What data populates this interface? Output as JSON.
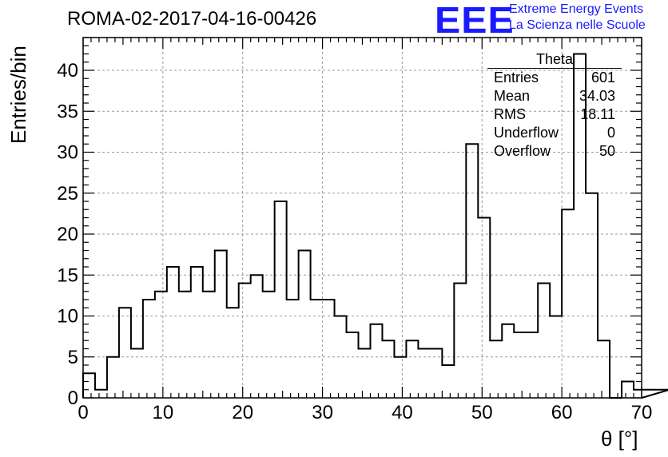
{
  "header": {
    "run_title": "ROMA-02-2017-04-16-00426",
    "logo_text": "EEE",
    "logo_line1": "Extreme Energy Events",
    "logo_line2": "La Scienza nelle Scuole",
    "brand_color": "#1a1aff"
  },
  "stats_box": {
    "title": "Theta",
    "rows": [
      {
        "label": "Entries",
        "value": "601"
      },
      {
        "label": "Mean",
        "value": "34.03"
      },
      {
        "label": "RMS",
        "value": "18.11"
      },
      {
        "label": "Underflow",
        "value": "0"
      },
      {
        "label": "Overflow",
        "value": "50"
      }
    ]
  },
  "chart_data": {
    "type": "histogram",
    "xlabel": "θ [°]",
    "ylabel": "Entries/bin",
    "xlim": [
      0,
      70
    ],
    "ylim": [
      0,
      44
    ],
    "xticks": [
      0,
      10,
      20,
      30,
      40,
      50,
      60,
      70
    ],
    "yticks": [
      0,
      5,
      10,
      15,
      20,
      25,
      30,
      35,
      40
    ],
    "grid": true,
    "bin_width": 1.5,
    "bin_edges_start": 0,
    "values": [
      3,
      1,
      5,
      11,
      6,
      12,
      13,
      16,
      13,
      16,
      13,
      18,
      11,
      14,
      15,
      13,
      24,
      12,
      18,
      12,
      12,
      10,
      8,
      6,
      9,
      7,
      5,
      7,
      6,
      6,
      4,
      14,
      31,
      22,
      7,
      9,
      8,
      8,
      14,
      10,
      23,
      42,
      25,
      7,
      0,
      2,
      1,
      1,
      1
    ]
  }
}
